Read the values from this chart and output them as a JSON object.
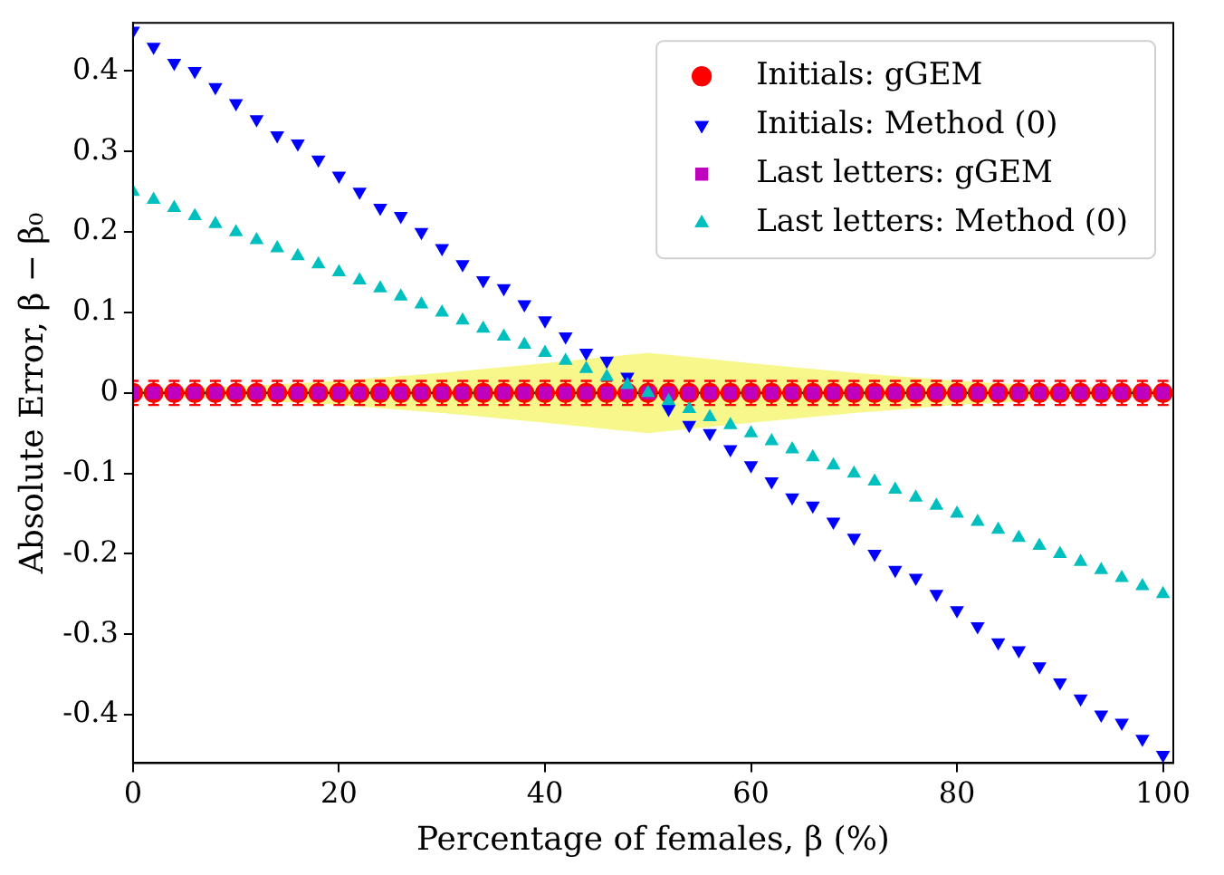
{
  "chart_data": {
    "type": "scatter",
    "xlabel": "Percentage of females, β (%)",
    "ylabel": "Absolute Error, β − β₀",
    "x": [
      0,
      2,
      4,
      6,
      8,
      10,
      12,
      14,
      16,
      18,
      20,
      22,
      24,
      26,
      28,
      30,
      32,
      34,
      36,
      38,
      40,
      42,
      44,
      46,
      48,
      50,
      52,
      54,
      56,
      58,
      60,
      62,
      64,
      66,
      68,
      70,
      72,
      74,
      76,
      78,
      80,
      82,
      84,
      86,
      88,
      90,
      92,
      94,
      96,
      98,
      100
    ],
    "xlim": [
      0,
      101
    ],
    "xticks": [
      0,
      20,
      40,
      60,
      80,
      100
    ],
    "ylim": [
      -0.46,
      0.46
    ],
    "yticks": [
      -0.4,
      -0.3,
      -0.2,
      -0.1,
      0.0,
      0.1,
      0.2,
      0.3,
      0.4
    ],
    "grid": false,
    "legend": "top right",
    "ref_lines": [
      {
        "axis": "y",
        "value": 0,
        "color": "#000000"
      }
    ],
    "series": [
      {
        "type": "line",
        "color": "#f7f78c",
        "x": [
          0,
          10,
          20,
          30,
          40,
          50,
          60,
          70,
          80,
          90,
          100
        ],
        "values": [
          null,
          null,
          null,
          null,
          null,
          null,
          null,
          null,
          null,
          null,
          null
        ],
        "lower": [
          -0.005,
          -0.008,
          -0.015,
          -0.025,
          -0.037,
          -0.05,
          -0.037,
          -0.025,
          -0.015,
          -0.008,
          -0.005
        ],
        "upper": [
          0.005,
          0.008,
          0.015,
          0.025,
          0.037,
          0.05,
          0.037,
          0.025,
          0.015,
          0.008,
          0.005
        ]
      },
      {
        "name": "Initials: gGEM",
        "color": "#ff0000",
        "marker": "circle",
        "values": [
          0,
          0,
          0,
          0,
          0,
          0,
          0,
          0,
          0,
          0,
          0,
          0,
          0,
          0,
          0,
          0,
          0,
          0,
          0,
          0,
          0,
          0,
          0,
          0,
          0,
          0,
          0,
          0,
          0,
          0,
          0,
          0,
          0,
          0,
          0,
          0,
          0,
          0,
          0,
          0,
          0,
          0,
          0,
          0,
          0,
          0,
          0,
          0,
          0,
          0,
          0
        ],
        "errors": [
          0.015,
          0.015,
          0.015,
          0.015,
          0.015,
          0.015,
          0.015,
          0.015,
          0.015,
          0.015,
          0.015,
          0.015,
          0.015,
          0.015,
          0.015,
          0.015,
          0.015,
          0.015,
          0.015,
          0.015,
          0.015,
          0.015,
          0.015,
          0.015,
          0.015,
          0.015,
          0.015,
          0.015,
          0.015,
          0.015,
          0.015,
          0.015,
          0.015,
          0.015,
          0.015,
          0.015,
          0.015,
          0.015,
          0.015,
          0.015,
          0.015,
          0.015,
          0.015,
          0.015,
          0.015,
          0.015,
          0.015,
          0.015,
          0.015,
          0.015,
          0.015
        ]
      },
      {
        "name": "Initials: Method (0)",
        "color": "#0000ff",
        "marker": "triangle-down",
        "values": [
          0.45,
          0.43,
          0.41,
          0.4,
          0.38,
          0.36,
          0.34,
          0.32,
          0.31,
          0.29,
          0.27,
          0.25,
          0.23,
          0.22,
          0.2,
          0.18,
          0.16,
          0.14,
          0.13,
          0.11,
          0.09,
          0.07,
          0.05,
          0.04,
          0.02,
          null,
          -0.02,
          -0.04,
          -0.05,
          -0.07,
          -0.09,
          -0.11,
          -0.13,
          -0.14,
          -0.16,
          -0.18,
          -0.2,
          -0.22,
          -0.23,
          -0.25,
          -0.27,
          -0.29,
          -0.31,
          -0.32,
          -0.34,
          -0.36,
          -0.38,
          -0.4,
          -0.41,
          -0.43,
          -0.45
        ]
      },
      {
        "name": "Last letters: gGEM",
        "color": "#bf00bf",
        "marker": "square",
        "values": [
          0,
          0,
          0,
          0,
          0,
          0,
          0,
          0,
          0,
          0,
          0,
          0,
          0,
          0,
          0,
          0,
          0,
          0,
          0,
          0,
          0,
          0,
          0,
          0,
          0,
          0,
          0,
          0,
          0,
          0,
          0,
          0,
          0,
          0,
          0,
          0,
          0,
          0,
          0,
          0,
          0,
          0,
          0,
          0,
          0,
          0,
          0,
          0,
          0,
          0,
          0
        ]
      },
      {
        "name": "Last letters: Method (0)",
        "color": "#00bfbf",
        "marker": "triangle",
        "values": [
          0.25,
          0.24,
          0.23,
          0.22,
          0.21,
          0.2,
          0.19,
          0.18,
          0.17,
          0.16,
          0.15,
          0.14,
          0.13,
          0.12,
          0.11,
          0.1,
          0.09,
          0.08,
          0.07,
          0.06,
          0.05,
          0.04,
          0.03,
          0.02,
          0.01,
          0,
          -0.01,
          -0.02,
          -0.03,
          -0.04,
          -0.05,
          -0.06,
          -0.07,
          -0.08,
          -0.09,
          -0.1,
          -0.11,
          -0.12,
          -0.13,
          -0.14,
          -0.15,
          -0.16,
          -0.17,
          -0.18,
          -0.19,
          -0.2,
          -0.21,
          -0.22,
          -0.23,
          -0.24,
          -0.25
        ]
      }
    ]
  }
}
